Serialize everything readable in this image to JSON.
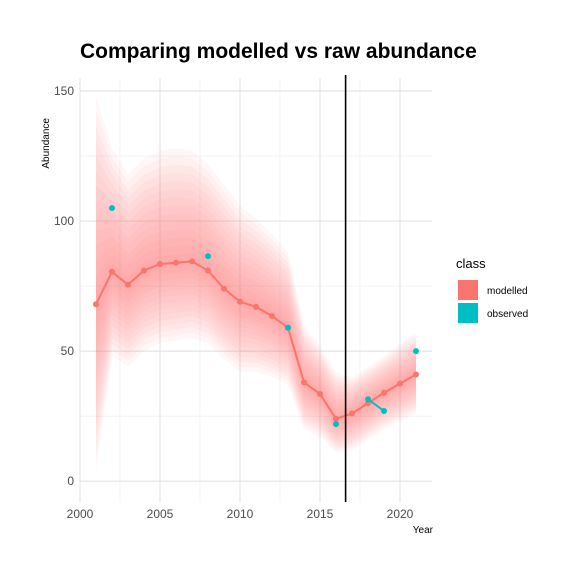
{
  "chart_data": {
    "type": "line",
    "title": "Comparing modelled vs raw abundance",
    "xlabel": "Year",
    "ylabel": "Abundance",
    "xlim": [
      2000,
      2022
    ],
    "ylim": [
      -8,
      155
    ],
    "x_ticks": [
      2000,
      2005,
      2010,
      2015,
      2020
    ],
    "y_ticks": [
      0,
      50,
      100,
      150
    ],
    "grid": true,
    "vertical_line_x": 2016.6,
    "legend": {
      "title": "class",
      "position": "right",
      "entries": [
        {
          "label": "modelled",
          "color": "#F8766D"
        },
        {
          "label": "observed",
          "color": "#00BFC4"
        }
      ]
    },
    "series": [
      {
        "name": "modelled",
        "color": "#F8766D",
        "x": [
          2001,
          2002,
          2003,
          2004,
          2005,
          2006,
          2007,
          2008,
          2009,
          2010,
          2011,
          2012,
          2013,
          2014,
          2015,
          2016,
          2017,
          2018,
          2019,
          2020,
          2021
        ],
        "values": [
          68,
          80.5,
          75.5,
          81,
          83.5,
          84,
          84.5,
          81,
          74,
          69,
          67,
          63.5,
          59,
          38,
          33.5,
          24,
          26,
          30,
          34,
          37.5,
          41
        ],
        "lower": [
          4,
          48,
          44,
          50,
          53,
          54,
          55,
          53,
          47,
          42,
          42,
          40,
          37,
          20,
          17,
          11,
          12,
          16,
          20,
          23,
          26
        ],
        "upper": [
          148,
          128,
          118,
          124,
          127,
          128,
          127,
          122,
          114,
          106,
          101,
          95,
          88,
          60,
          52,
          42,
          40,
          44,
          48,
          53,
          57
        ]
      },
      {
        "name": "observed",
        "color": "#00BFC4",
        "x": [
          2002,
          2008,
          2013,
          2016,
          2018,
          2019,
          2021
        ],
        "values": [
          105,
          86.5,
          59,
          22,
          31.5,
          27,
          50
        ],
        "connected_pairs": [
          [
            2018,
            2019
          ]
        ]
      }
    ]
  }
}
